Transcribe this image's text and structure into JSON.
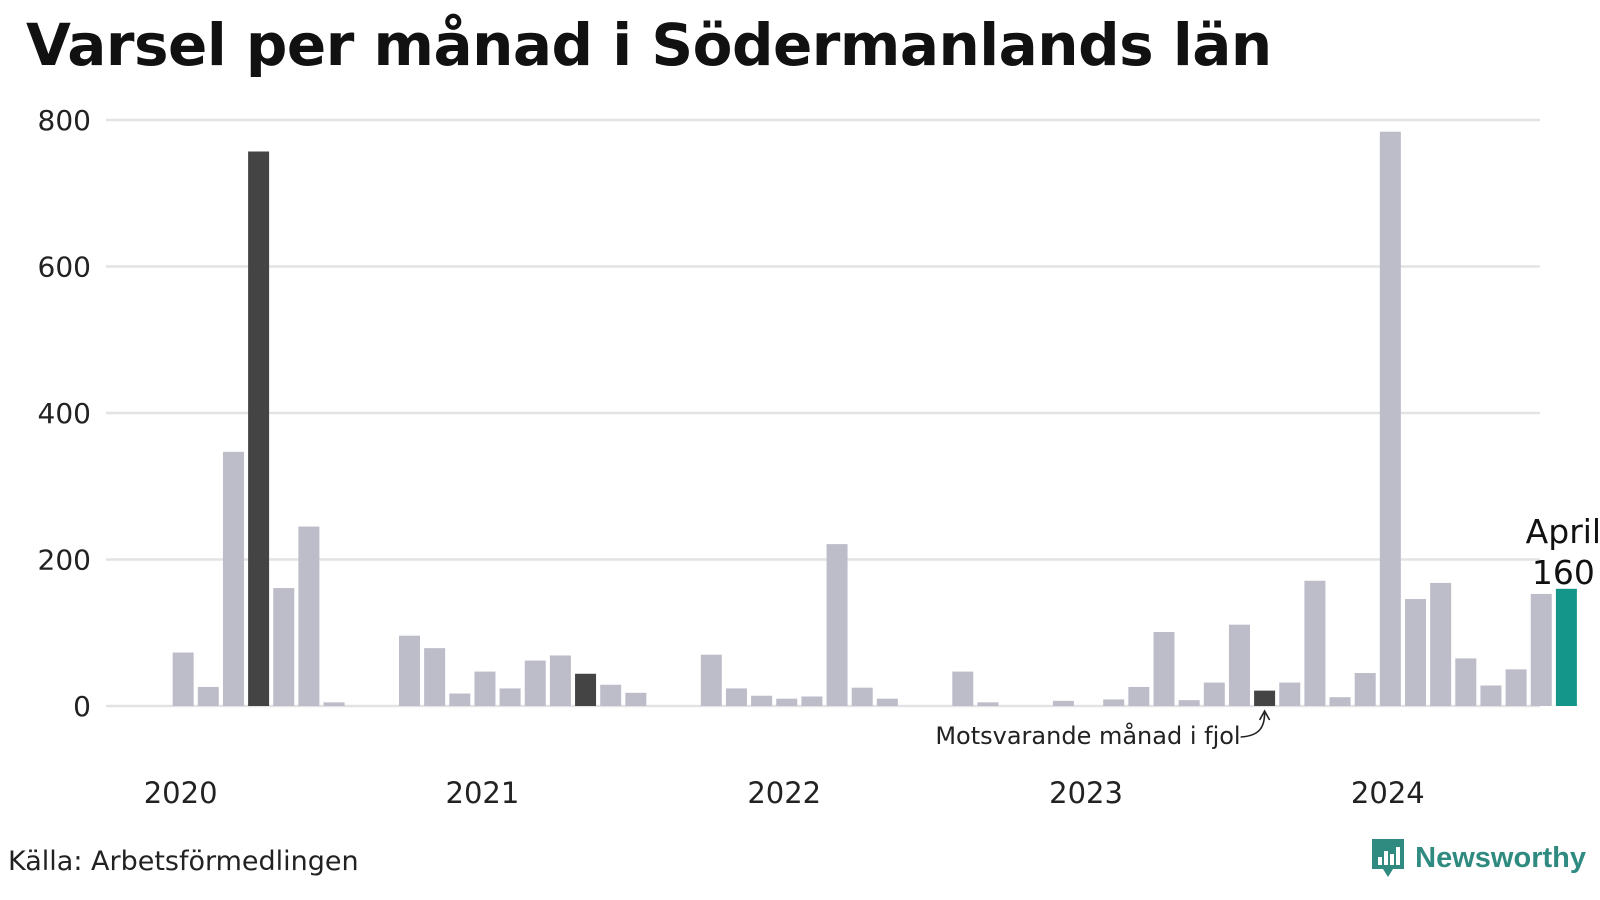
{
  "title": "Varsel per månad i Södermanlands län",
  "source": "Källa: Arbetsförmedlingen",
  "brand": {
    "name": "Newsworthy",
    "icon": "newsworthy-logo-icon"
  },
  "colors": {
    "bar": "#bdbcc9",
    "highlight_last_year": "#444444",
    "current": "#14968a",
    "grid": "#e3e3e6",
    "brand": "#2f8a80"
  },
  "chart_data": {
    "type": "bar",
    "title": "Varsel per månad i Södermanlands län",
    "xlabel": "",
    "ylabel": "",
    "ylim": [
      0,
      800
    ],
    "yticks": [
      0,
      200,
      400,
      600,
      800
    ],
    "grid": true,
    "year_labels": [
      "2020",
      "2021",
      "2022",
      "2023",
      "2024"
    ],
    "series": [
      {
        "values": [
          0,
          73,
          26,
          347,
          757,
          161,
          245,
          5,
          0,
          0,
          96,
          79,
          17,
          47,
          24,
          62,
          69,
          44,
          29,
          18,
          0,
          0,
          70,
          24,
          14,
          10,
          13,
          221,
          25,
          10,
          0,
          0,
          47,
          5,
          0,
          0,
          7,
          0,
          9,
          26,
          101,
          8,
          32,
          111,
          21,
          32,
          171,
          12,
          45,
          784,
          146,
          168,
          65,
          28,
          50,
          153,
          160
        ]
      }
    ],
    "highlight": {
      "last_year_indices": [
        4,
        17,
        44
      ],
      "current_index": 56,
      "current_label": "April",
      "current_value_label": "160"
    },
    "annotation": {
      "text": "Motsvarande månad i fjol",
      "target_index": 44
    }
  }
}
